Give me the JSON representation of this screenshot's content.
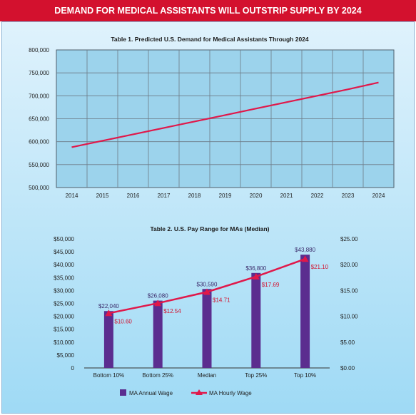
{
  "banner": {
    "title": "DEMAND FOR MEDICAL ASSISTANTS WILL OUTSTRIP SUPPLY BY 2024"
  },
  "colors": {
    "banner": "#d3112e",
    "line": "#e0184a",
    "bar": "#5b2d8f",
    "grid": "#6d7a86",
    "panel_top": "#dff2fc",
    "panel_bottom": "#9fdaf5"
  },
  "chart_data": [
    {
      "type": "line",
      "title": "Table 1. Predicted U.S. Demand for Medical Assistants Through 2024",
      "x": [
        "2014",
        "2015",
        "2016",
        "2017",
        "2018",
        "2019",
        "2020",
        "2021",
        "2022",
        "2023",
        "2024"
      ],
      "series": [
        {
          "values": [
            588000,
            602000,
            616000,
            630000,
            644000,
            658000,
            672000,
            686000,
            700000,
            714000,
            729000
          ]
        }
      ],
      "y_ticks": [
        "800,000",
        "750,000",
        "700,000",
        "650,000",
        "600,000",
        "550,000",
        "500,000"
      ],
      "ylim": [
        500000,
        800000
      ],
      "grid": true
    },
    {
      "type": "bar",
      "title": "Table 2. U.S. Pay Range for MAs (Median)",
      "categories": [
        "Bottom 10%",
        "Bottom 25%",
        "Median",
        "Top 25%",
        "Top 10%"
      ],
      "series": [
        {
          "name": "MA Annual Wage",
          "type": "bar",
          "axis": "left",
          "values": [
            22040,
            26080,
            30590,
            36800,
            43880
          ],
          "labels": [
            "$22,040",
            "$26,080",
            "$30,590",
            "$36,800",
            "$43,880"
          ]
        },
        {
          "name": "MA Hourly Wage",
          "type": "line",
          "axis": "right",
          "values": [
            10.6,
            12.54,
            14.71,
            17.69,
            21.1
          ],
          "labels": [
            "$10.60",
            "$12.54",
            "$14.71",
            "$17.69",
            "$21.10"
          ]
        }
      ],
      "y_ticks_left": [
        "$50,000",
        "$45,000",
        "$40,000",
        "$35,000",
        "$30,000",
        "$25,000",
        "$20,000",
        "$15,000",
        "$10,000",
        "$5,000",
        "0"
      ],
      "y_ticks_right": [
        "$25.00",
        "$20.00",
        "$15.00",
        "$10.00",
        "$5.00",
        "$0.00"
      ],
      "ylim_left": [
        0,
        50000
      ],
      "ylim_right": [
        0,
        25
      ],
      "legend": "bottom"
    }
  ]
}
